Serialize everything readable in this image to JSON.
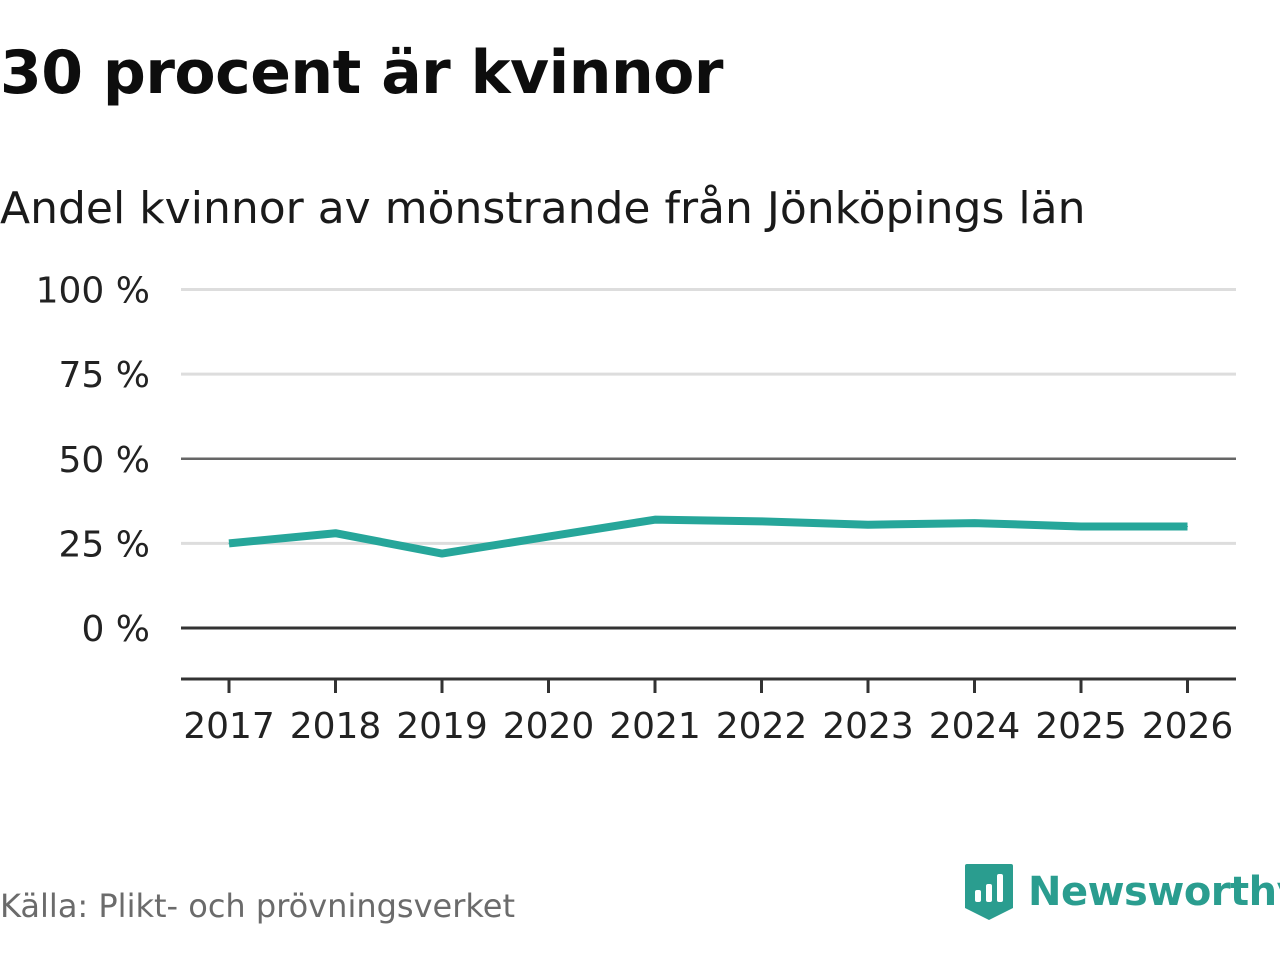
{
  "title": "30 procent är kvinnor",
  "subtitle": "Andel kvinnor av mönstrande från Jönköpings län",
  "source": "Källa: Plikt- och prövningsverket",
  "brand": {
    "name": "Newsworthy",
    "icon": "newsworthy-logo-icon",
    "color": "#2a9d8f"
  },
  "colors": {
    "line": "#26a69a",
    "grid": "#dddddd",
    "axis": "#333333",
    "mid": "#666666"
  },
  "chart_data": {
    "type": "line",
    "title": "30 procent är kvinnor",
    "subtitle": "Andel kvinnor av mönstrande från Jönköpings län",
    "xlabel": "",
    "ylabel": "",
    "ylim": [
      -15,
      100
    ],
    "yticks": [
      0,
      25,
      50,
      75,
      100
    ],
    "ytick_labels": [
      "0 %",
      "25 %",
      "50 %",
      "75 %",
      "100 %"
    ],
    "categories": [
      "2017",
      "2018",
      "2019",
      "2020",
      "2021",
      "2022",
      "2023",
      "2024",
      "2025",
      "2026"
    ],
    "series": [
      {
        "name": "Andel kvinnor",
        "values": [
          25,
          28,
          22,
          27,
          32,
          31.5,
          30.5,
          31,
          30,
          30
        ]
      }
    ]
  }
}
